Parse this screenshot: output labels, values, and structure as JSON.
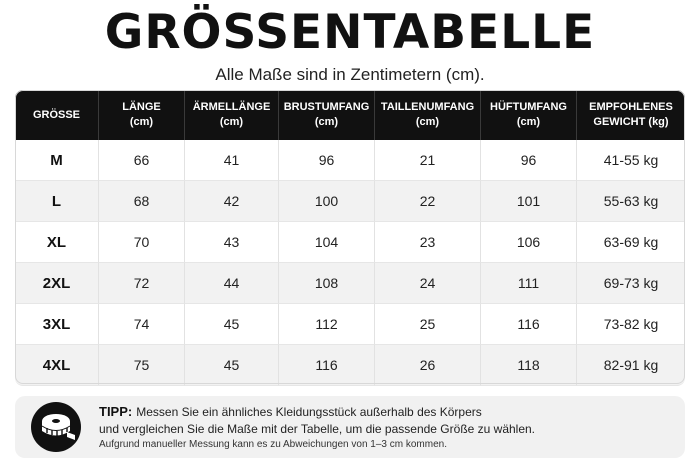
{
  "header": {
    "title": "GRÖSSENTABELLE",
    "subtitle": "Alle Maße sind in Zentimetern (cm)."
  },
  "table": {
    "columns": [
      {
        "line1": "GRÖSSE",
        "line2": ""
      },
      {
        "line1": "LÄNGE",
        "line2": "(cm)"
      },
      {
        "line1": "ÄRMELLÄNGE",
        "line2": "(cm)"
      },
      {
        "line1": "BRUSTUMFANG",
        "line2": "(cm)"
      },
      {
        "line1": "TAILLENUMFANG",
        "line2": "(cm)"
      },
      {
        "line1": "HÜFTUMFANG",
        "line2": "(cm)"
      },
      {
        "line1": "EMPFOHLENES",
        "line2": "GEWICHT (kg)"
      }
    ],
    "rows": [
      [
        "M",
        "66",
        "41",
        "96",
        "21",
        "96",
        "41-55 kg"
      ],
      [
        "L",
        "68",
        "42",
        "100",
        "22",
        "101",
        "55-63 kg"
      ],
      [
        "XL",
        "70",
        "43",
        "104",
        "23",
        "106",
        "63-69 kg"
      ],
      [
        "2XL",
        "72",
        "44",
        "108",
        "24",
        "111",
        "69-73 kg"
      ],
      [
        "3XL",
        "74",
        "45",
        "112",
        "25",
        "116",
        "73-82 kg"
      ],
      [
        "4XL",
        "75",
        "45",
        "116",
        "26",
        "118",
        "82-91 kg"
      ]
    ]
  },
  "tip": {
    "icon": "measuring-tape-icon",
    "label": "TIPP:",
    "line1": "Messen Sie ein ähnliches Kleidungsstück außerhalb des Körpers",
    "line2": "und vergleichen Sie die Maße mit der Tabelle, um die passende Größe zu wählen.",
    "note": "Aufgrund manueller Messung kann es zu Abweichungen von 1–3 cm kommen."
  }
}
